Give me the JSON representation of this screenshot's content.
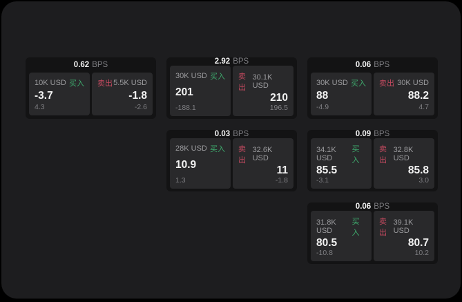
{
  "labels": {
    "bps": "BPS",
    "buy": "买入",
    "sell": "卖出"
  },
  "colors": {
    "buy_green": "#3eaa6d",
    "sell_red": "#c54a60",
    "panel_bg": "#1d1d1f",
    "card_bg": "#131314",
    "pane_bg": "#29292b"
  },
  "cards": [
    {
      "spread": "0.62",
      "buy": {
        "amount": "10K USD",
        "price": "-3.7",
        "delta": "4.3"
      },
      "sell": {
        "amount": "5.5K USD",
        "price": "-1.8",
        "delta": "-2.6"
      }
    },
    {
      "spread": "2.92",
      "buy": {
        "amount": "30K USD",
        "price": "201",
        "delta": "-188.1"
      },
      "sell": {
        "amount": "30.1K USD",
        "price": "210",
        "delta": "196.5"
      }
    },
    {
      "spread": "0.06",
      "buy": {
        "amount": "30K USD",
        "price": "88",
        "delta": "-4.9"
      },
      "sell": {
        "amount": "30K USD",
        "price": "88.2",
        "delta": "4.7"
      }
    },
    {
      "spread": "0.03",
      "buy": {
        "amount": "28K USD",
        "price": "10.9",
        "delta": "1.3"
      },
      "sell": {
        "amount": "32.6K USD",
        "price": "11",
        "delta": "-1.8"
      }
    },
    {
      "spread": "0.09",
      "buy": {
        "amount": "34.1K USD",
        "price": "85.5",
        "delta": "-3.1"
      },
      "sell": {
        "amount": "32.8K USD",
        "price": "85.8",
        "delta": "3.0"
      }
    },
    {
      "spread": "0.06",
      "buy": {
        "amount": "31.8K USD",
        "price": "80.5",
        "delta": "-10.8"
      },
      "sell": {
        "amount": "39.1K USD",
        "price": "80.7",
        "delta": "10.2"
      }
    }
  ]
}
